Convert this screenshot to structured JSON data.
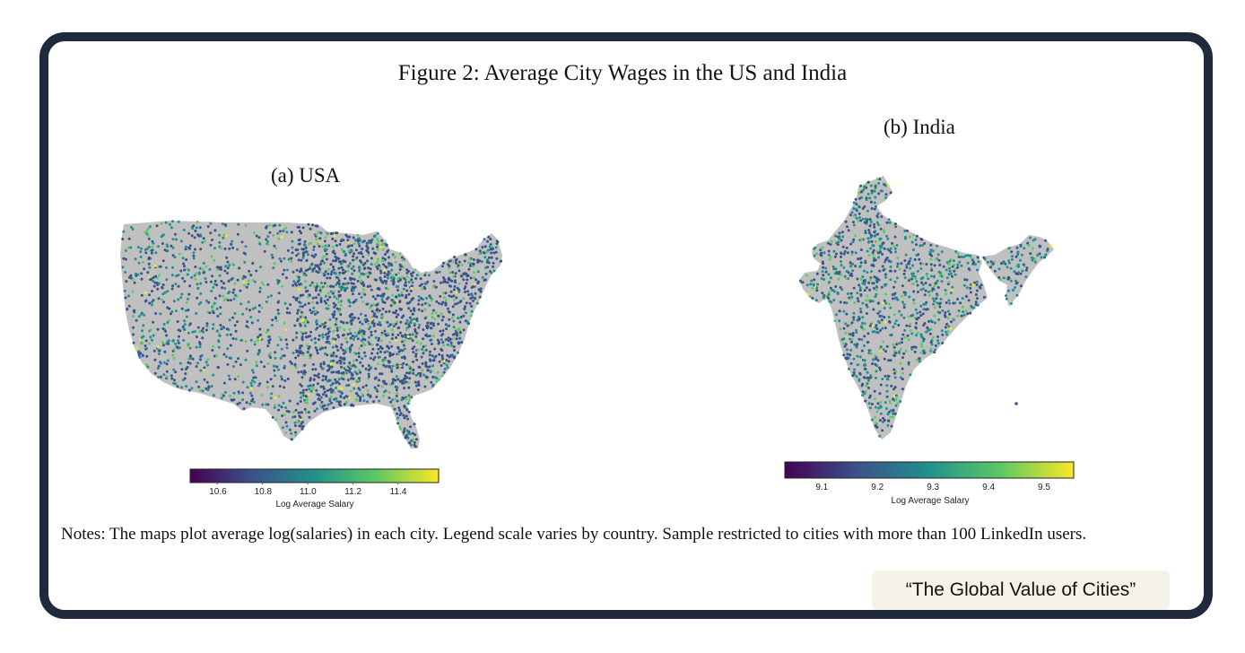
{
  "figure": {
    "title": "Figure 2: Average City Wages in the US and India",
    "panels": [
      {
        "label": "(a) USA",
        "colorbar": {
          "label": "Log Average Salary",
          "ticks": [
            "10.6",
            "10.8",
            "11.0",
            "11.2",
            "11.4"
          ],
          "min": 10.48,
          "max": 11.58
        }
      },
      {
        "label": "(b) India",
        "colorbar": {
          "label": "Log Average Salary",
          "ticks": [
            "9.1",
            "9.2",
            "9.3",
            "9.4",
            "9.5"
          ],
          "min": 9.03,
          "max": 9.55
        }
      }
    ],
    "notes": "Notes: The maps plot average log(salaries) in each city. Legend scale varies by country. Sample restricted to cities with more than 100 LinkedIn users."
  },
  "source_tag": "“The Global Value of Cities”",
  "colors": {
    "frame": "#1f2a3d",
    "land": "#c0c0c0",
    "viridis": [
      "#440154",
      "#3b528b",
      "#21918c",
      "#5ec962",
      "#fde725"
    ]
  }
}
